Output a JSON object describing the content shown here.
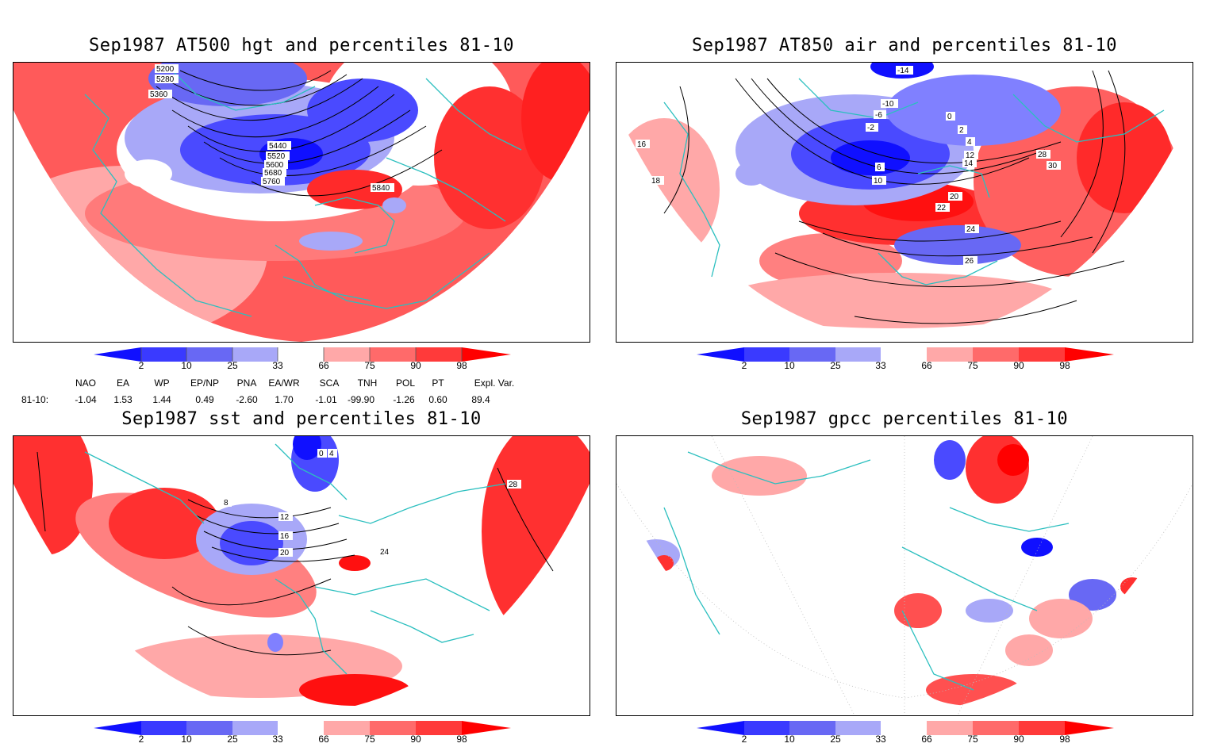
{
  "panels": [
    {
      "title": "Sep1987 AT500 hgt and percentiles 81-10",
      "contour_labels": [
        "5200",
        "5280",
        "5360",
        "5440",
        "5520",
        "5600",
        "5680",
        "5760",
        "5840"
      ]
    },
    {
      "title": "Sep1987 AT850 air and percentiles 81-10",
      "contour_labels": [
        "-14",
        "-10",
        "-6",
        "-2",
        "0",
        "2",
        "4",
        "6",
        "10",
        "12",
        "14",
        "16",
        "18",
        "20",
        "22",
        "24",
        "26",
        "28",
        "30"
      ]
    },
    {
      "title": "Sep1987 sst and percentiles 81-10",
      "contour_labels": [
        "0",
        "4",
        "8",
        "12",
        "16",
        "20",
        "24",
        "28"
      ]
    },
    {
      "title": "Sep1987 gpcc percentiles 81-10",
      "contour_labels": []
    }
  ],
  "colorbar": {
    "labels": [
      "2",
      "10",
      "25",
      "33",
      "66",
      "75",
      "90",
      "98"
    ],
    "colors": [
      "#1010ff",
      "#3a3aff",
      "#6868f4",
      "#a8a8f8",
      "#ffffff",
      "#ffa8a8",
      "#ff6a6a",
      "#ff3a3a",
      "#ff0000"
    ]
  },
  "indices": {
    "headers": [
      "NAO",
      "EA",
      "WP",
      "EP/NP",
      "PNA",
      "EA/WR",
      "SCA",
      "TNH",
      "POL",
      "PT",
      "Expl. Var."
    ],
    "row_label": "81-10:",
    "values": [
      "-1.04",
      "1.53",
      "1.44",
      "0.49",
      "-2.60",
      "1.70",
      "-1.01",
      "-99.90",
      "-1.26",
      "0.60",
      "89.4"
    ]
  },
  "colors": {
    "coast": "#2bbfbf",
    "contour": "#000000",
    "blue_strong": "#1010ff",
    "blue_mid": "#4a4aff",
    "blue_light": "#a8a8f8",
    "red_light": "#ffa8a8",
    "red_mid": "#ff5050",
    "red_strong": "#ff0000"
  }
}
